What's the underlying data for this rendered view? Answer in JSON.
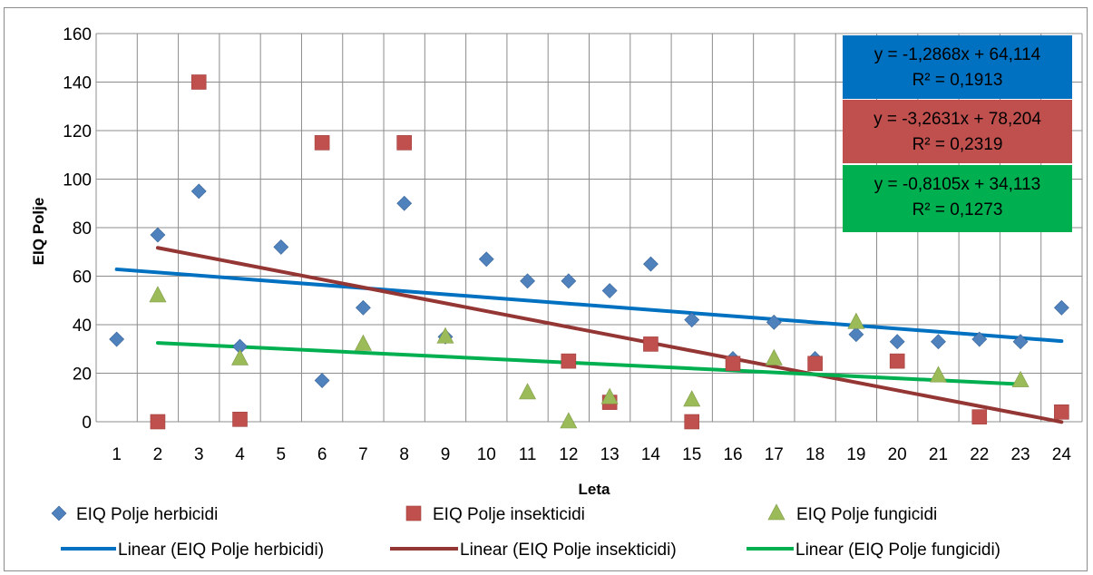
{
  "chart_data": {
    "type": "scatter",
    "xlabel": "Leta",
    "ylabel": "EIQ Polje",
    "xlim": [
      1,
      24
    ],
    "ylim": [
      0,
      160
    ],
    "x_ticks": [
      "1",
      "2",
      "3",
      "4",
      "5",
      "6",
      "7",
      "8",
      "9",
      "10",
      "11",
      "12",
      "13",
      "14",
      "15",
      "16",
      "17",
      "18",
      "19",
      "20",
      "21",
      "22",
      "23",
      "24"
    ],
    "y_ticks": [
      "0",
      "20",
      "40",
      "60",
      "80",
      "100",
      "120",
      "140",
      "160"
    ],
    "grid": true,
    "legend_position": "bottom",
    "series": [
      {
        "name": "EIQ Polje herbicidi",
        "marker": "diamond",
        "color": "#4f81bd",
        "points": [
          [
            1,
            34
          ],
          [
            2,
            77
          ],
          [
            3,
            95
          ],
          [
            4,
            31
          ],
          [
            5,
            72
          ],
          [
            6,
            17
          ],
          [
            7,
            47
          ],
          [
            8,
            90
          ],
          [
            9,
            35
          ],
          [
            10,
            67
          ],
          [
            11,
            58
          ],
          [
            12,
            58
          ],
          [
            13,
            54
          ],
          [
            14,
            65
          ],
          [
            15,
            42
          ],
          [
            16,
            26
          ],
          [
            17,
            41
          ],
          [
            18,
            26
          ],
          [
            19,
            36
          ],
          [
            20,
            33
          ],
          [
            21,
            33
          ],
          [
            22,
            34
          ],
          [
            23,
            33
          ],
          [
            24,
            47
          ]
        ]
      },
      {
        "name": "EIQ Polje insekticidi",
        "marker": "square",
        "color": "#c0504d",
        "points": [
          [
            2,
            0
          ],
          [
            3,
            140
          ],
          [
            4,
            1
          ],
          [
            6,
            115
          ],
          [
            8,
            115
          ],
          [
            12,
            25
          ],
          [
            13,
            8
          ],
          [
            14,
            32
          ],
          [
            15,
            0
          ],
          [
            16,
            24
          ],
          [
            18,
            24
          ],
          [
            20,
            25
          ],
          [
            22,
            2
          ],
          [
            24,
            4
          ]
        ]
      },
      {
        "name": "EIQ Polje fungicidi",
        "marker": "triangle",
        "color": "#9bbb59",
        "points": [
          [
            2,
            52
          ],
          [
            4,
            26
          ],
          [
            7,
            32
          ],
          [
            9,
            35
          ],
          [
            11,
            12
          ],
          [
            12,
            0
          ],
          [
            13,
            10
          ],
          [
            15,
            9
          ],
          [
            17,
            26
          ],
          [
            19,
            41
          ],
          [
            21,
            19
          ],
          [
            23,
            17
          ]
        ]
      }
    ],
    "trendlines": [
      {
        "name": "Linear (EIQ Polje herbicidi)",
        "color": "#0070c0",
        "slope": -1.2868,
        "intercept": 64.114,
        "x_range": [
          1,
          24
        ],
        "equation": "y = -1,2868x + 64,114",
        "r2": "R² = 0,1913",
        "box_color": "#0070c0"
      },
      {
        "name": "Linear (EIQ Polje insekticidi)",
        "color": "#943634",
        "slope": -3.2631,
        "intercept": 78.204,
        "x_range": [
          2,
          24
        ],
        "equation": "y = -3,2631x + 78,204",
        "r2": "R² = 0,2319",
        "box_color": "#c0504d"
      },
      {
        "name": "Linear (EIQ Polje fungicidi)",
        "color": "#00b050",
        "slope": -0.8105,
        "intercept": 34.113,
        "x_range": [
          2,
          23
        ],
        "equation": "y = -0,8105x + 34,113",
        "r2": "R² = 0,1273",
        "box_color": "#00b050"
      }
    ]
  }
}
